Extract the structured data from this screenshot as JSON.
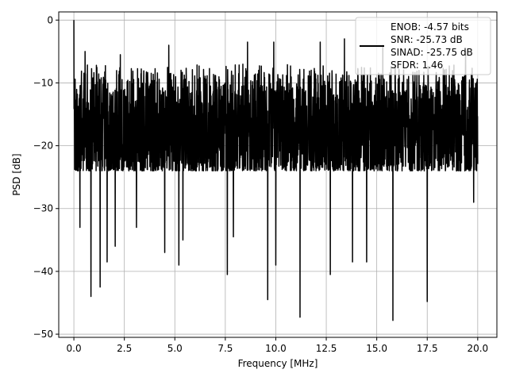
{
  "chart_data": {
    "type": "line",
    "xlabel": "Frequency [MHz]",
    "ylabel": "PSD [dB]",
    "xlim": [
      -0.75,
      20.95
    ],
    "ylim": [
      -50.5,
      1.3
    ],
    "x_range": [
      0,
      20
    ],
    "xticks": [
      0.0,
      2.5,
      5.0,
      7.5,
      10.0,
      12.5,
      15.0,
      17.5,
      20.0
    ],
    "xtick_labels": [
      "0.0",
      "2.5",
      "5.0",
      "7.5",
      "10.0",
      "12.5",
      "15.0",
      "17.5",
      "20.0"
    ],
    "yticks": [
      0,
      -10,
      -20,
      -30,
      -40,
      -50
    ],
    "ytick_labels": [
      "0",
      "−10",
      "−20",
      "−30",
      "−40",
      "−50"
    ],
    "grid": true,
    "legend_position": "top-right",
    "line_color": "#000000",
    "series": [
      {
        "legend_lines": [
          "ENOB: -4.57 bits",
          "SNR: -25.73 dB",
          "SINAD: -25.75 dB",
          "SFDR: 1.46"
        ],
        "peak": {
          "x": 0.0,
          "y": 0.0
        },
        "typical_top": -7,
        "typical_bottom": -24,
        "deep_notches": [
          {
            "x": 0.1,
            "y": -17
          },
          {
            "x": 0.3,
            "y": -33
          },
          {
            "x": 0.85,
            "y": -44
          },
          {
            "x": 1.3,
            "y": -42.5
          },
          {
            "x": 1.65,
            "y": -38.5
          },
          {
            "x": 2.05,
            "y": -36
          },
          {
            "x": 3.1,
            "y": -33
          },
          {
            "x": 4.5,
            "y": -37
          },
          {
            "x": 5.2,
            "y": -39
          },
          {
            "x": 5.4,
            "y": -35
          },
          {
            "x": 7.6,
            "y": -40.5
          },
          {
            "x": 7.9,
            "y": -34.5
          },
          {
            "x": 9.6,
            "y": -44.5
          },
          {
            "x": 10.0,
            "y": -39
          },
          {
            "x": 11.2,
            "y": -47.3
          },
          {
            "x": 12.7,
            "y": -40.5
          },
          {
            "x": 13.8,
            "y": -38.5
          },
          {
            "x": 14.5,
            "y": -38.5
          },
          {
            "x": 15.8,
            "y": -47.8
          },
          {
            "x": 17.5,
            "y": -44.8
          },
          {
            "x": 19.8,
            "y": -29
          }
        ],
        "high_peaks": [
          {
            "x": 0.0,
            "y": 0.0
          },
          {
            "x": 0.55,
            "y": -5
          },
          {
            "x": 2.3,
            "y": -5.5
          },
          {
            "x": 4.7,
            "y": -4
          },
          {
            "x": 8.6,
            "y": -3.5
          },
          {
            "x": 9.9,
            "y": -3.5
          },
          {
            "x": 12.2,
            "y": -3.5
          },
          {
            "x": 13.4,
            "y": -3
          },
          {
            "x": 15.3,
            "y": -4
          },
          {
            "x": 19.4,
            "y": -5
          }
        ]
      }
    ]
  }
}
